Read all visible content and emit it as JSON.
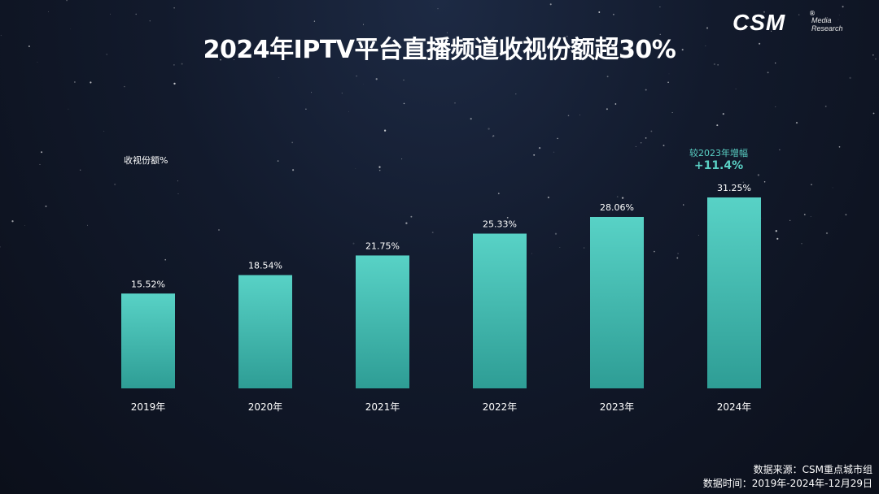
{
  "title": "2024年IPTV平台直播频道收视份额超30%",
  "logo": {
    "brand": "CSM",
    "registered": "®",
    "sub_line1": "Media",
    "sub_line2": "Research"
  },
  "chart_data": {
    "type": "bar",
    "title": "2024年IPTV平台直播频道收视份额超30%",
    "ylabel": "收视份额%",
    "xlabel": "",
    "categories": [
      "2019年",
      "2020年",
      "2021年",
      "2022年",
      "2023年",
      "2024年"
    ],
    "values": [
      15.52,
      18.54,
      21.75,
      25.33,
      28.06,
      31.25
    ],
    "value_labels": [
      "15.52%",
      "18.54%",
      "21.75%",
      "25.33%",
      "28.06%",
      "31.25%"
    ],
    "ylim": [
      0,
      31.25
    ],
    "grid": false,
    "bar_color_top": "#58d2c6",
    "bar_color_bottom": "#2e9d95",
    "annotation": {
      "label": "较2023年增幅",
      "value": "+11.4%",
      "color": "#5ad0c4"
    }
  },
  "source": {
    "line1": "数据来源：CSM重点城市组",
    "line2": "数据时间：2019年-2024年-12月29日"
  }
}
